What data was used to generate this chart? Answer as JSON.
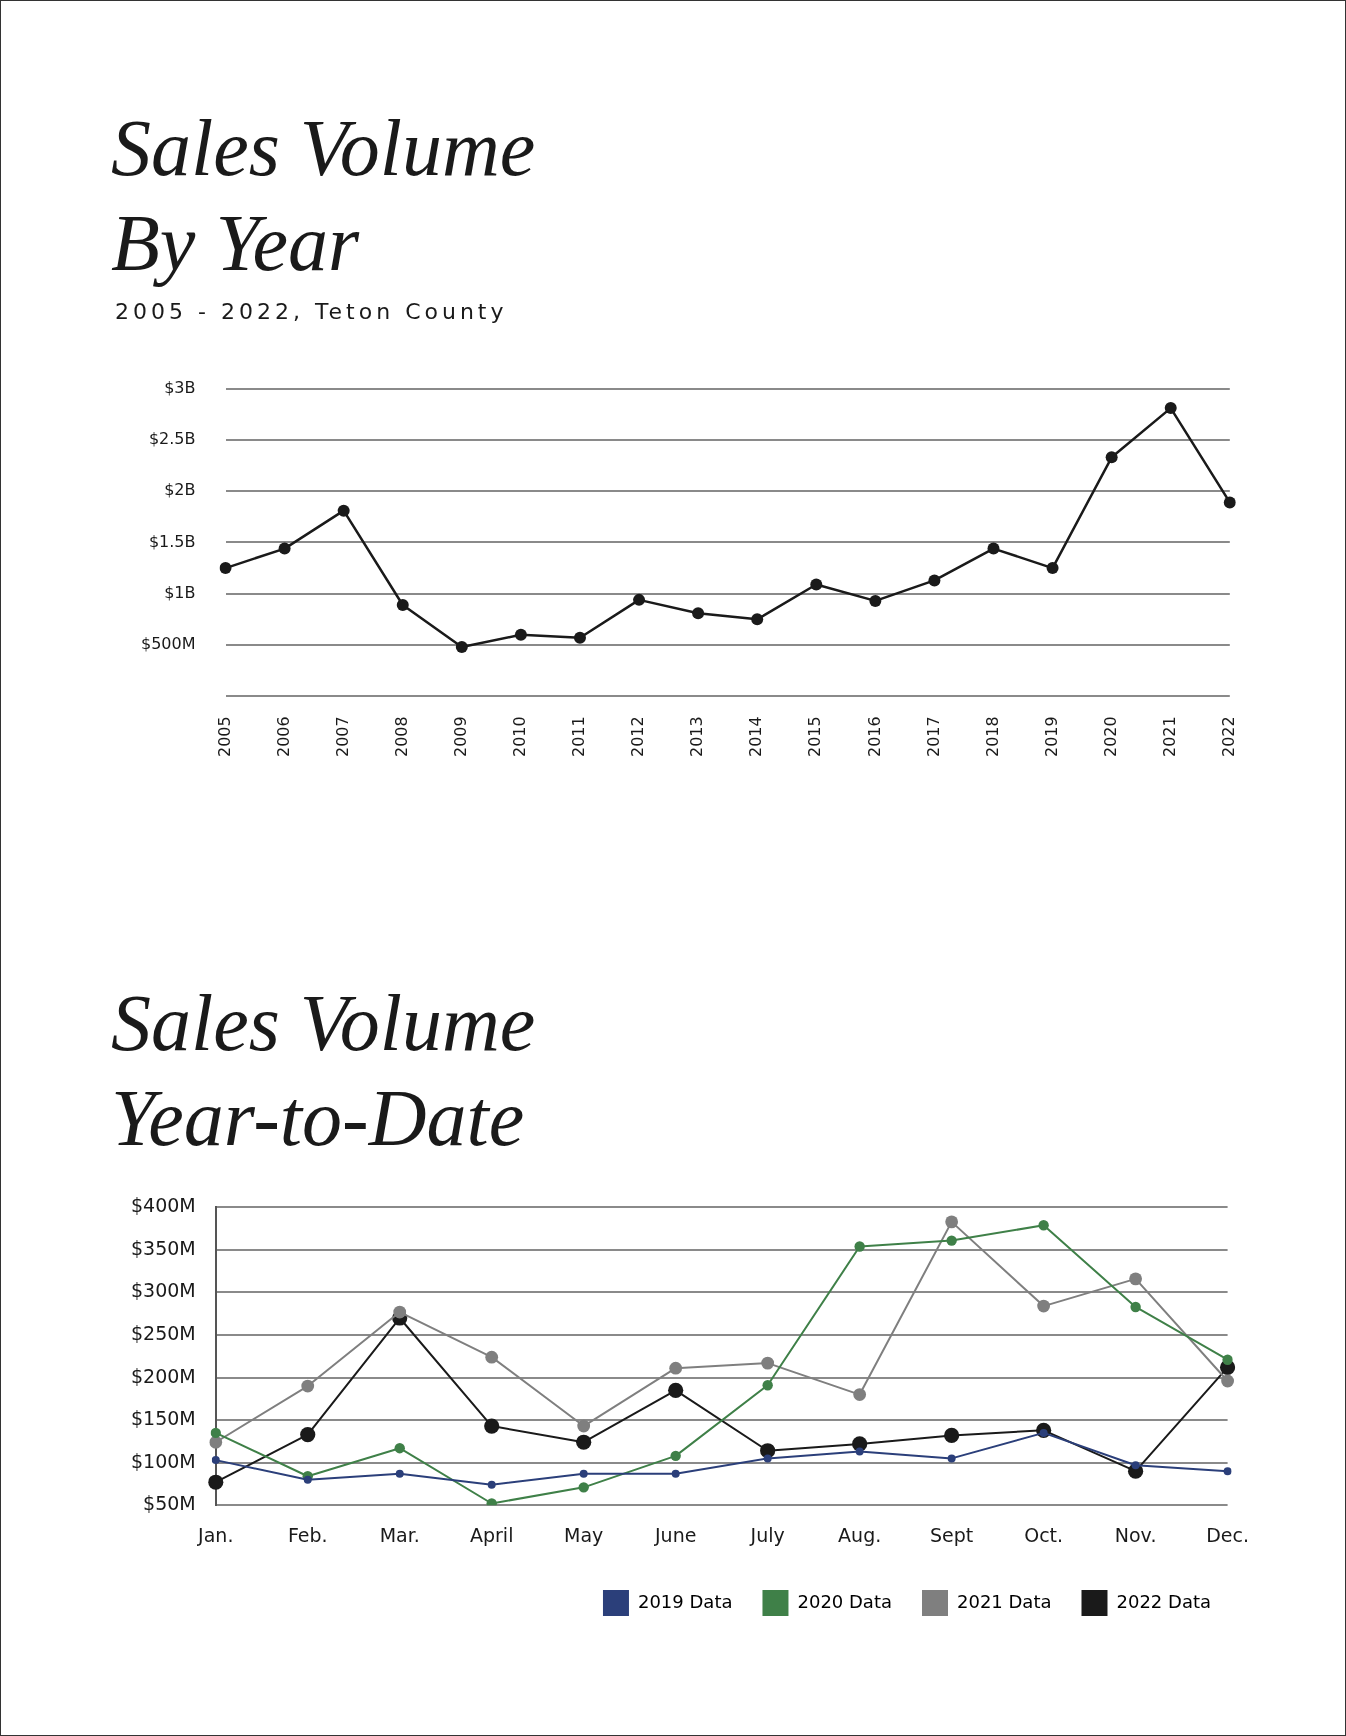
{
  "chart_data": [
    {
      "type": "line",
      "title": "Sales Volume By Year",
      "subtitle": "2005 - 2022, Teton County",
      "categories": [
        "2005",
        "2006",
        "2007",
        "2008",
        "2009",
        "2010",
        "2011",
        "2012",
        "2013",
        "2014",
        "2015",
        "2016",
        "2017",
        "2018",
        "2019",
        "2020",
        "2021",
        "2022"
      ],
      "series": [
        {
          "color": "#1a1a1a",
          "values": [
            1250000000,
            1440000000,
            1810000000,
            890000000,
            480000000,
            600000000,
            570000000,
            940000000,
            810000000,
            750000000,
            1090000000,
            930000000,
            1130000000,
            1440000000,
            1250000000,
            2330000000,
            2810000000,
            1890000000
          ]
        }
      ],
      "ylim": [
        0,
        3000000000
      ],
      "yticks": [
        {
          "value": 0,
          "label": null
        },
        {
          "value": 500000000,
          "label": "$500M"
        },
        {
          "value": 1000000000,
          "label": "$1B"
        },
        {
          "value": 1500000000,
          "label": "$1.5B"
        },
        {
          "value": 2000000000,
          "label": "$2B"
        },
        {
          "value": 2500000000,
          "label": "$2.5B"
        },
        {
          "value": 3000000000,
          "label": "$3B"
        }
      ],
      "grid": "y",
      "marker": "circle",
      "line_style": "solid"
    },
    {
      "type": "line",
      "title": "Sales Volume Year-to-Date",
      "categories": [
        "Jan.",
        "Feb.",
        "Mar.",
        "April",
        "May",
        "June",
        "July",
        "Aug.",
        "Sept",
        "Oct.",
        "Nov.",
        "Dec."
      ],
      "series": [
        {
          "name": "2019 Data",
          "color": "#2b3f7a",
          "values": [
            103,
            80,
            87,
            74,
            87,
            87,
            105,
            113,
            105,
            135,
            97,
            90
          ]
        },
        {
          "name": "2020 Data",
          "color": "#3f8048",
          "values": [
            135,
            84,
            117,
            52,
            71,
            108,
            191,
            354,
            361,
            379,
            283,
            221
          ]
        },
        {
          "name": "2021 Data",
          "color": "#7f7f7f",
          "values": [
            124,
            190,
            277,
            224,
            143,
            211,
            217,
            180,
            383,
            284,
            316,
            196
          ]
        },
        {
          "name": "2022 Data",
          "color": "#1a1a1a",
          "values": [
            77,
            133,
            270,
            143,
            124,
            185,
            114,
            122,
            132,
            138,
            90,
            212
          ]
        }
      ],
      "ylim": [
        50,
        400
      ],
      "yticks": [
        {
          "value": 50,
          "label": "$50M"
        },
        {
          "value": 100,
          "label": "$100M"
        },
        {
          "value": 150,
          "label": "$150M"
        },
        {
          "value": 200,
          "label": "$200M"
        },
        {
          "value": 250,
          "label": "$250M"
        },
        {
          "value": 300,
          "label": "$300M"
        },
        {
          "value": 350,
          "label": "$350M"
        },
        {
          "value": 400,
          "label": "$400M"
        }
      ],
      "grid": "y",
      "legend": "bottom right",
      "marker": "circle",
      "line_style": "solid"
    }
  ]
}
